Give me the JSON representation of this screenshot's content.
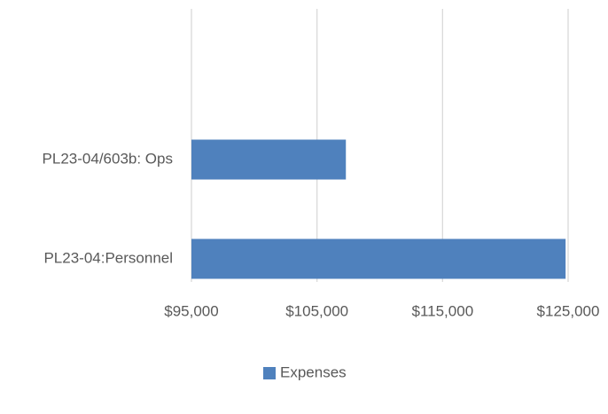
{
  "chart_data": {
    "type": "hbar",
    "categories": [
      "PL23-04/603b: Ops",
      "PL23-04:Personnel"
    ],
    "series": [
      {
        "name": "Expenses",
        "color": "#4f81bd",
        "values": [
          107300,
          124800
        ]
      }
    ],
    "xlim": [
      95000,
      125000
    ],
    "xticks": [
      {
        "value": 95000,
        "label": "$95,000"
      },
      {
        "value": 105000,
        "label": "$105,000"
      },
      {
        "value": 115000,
        "label": "$115,000"
      },
      {
        "value": 125000,
        "label": "$125,000"
      }
    ],
    "grid": true,
    "legend": "bottom"
  }
}
